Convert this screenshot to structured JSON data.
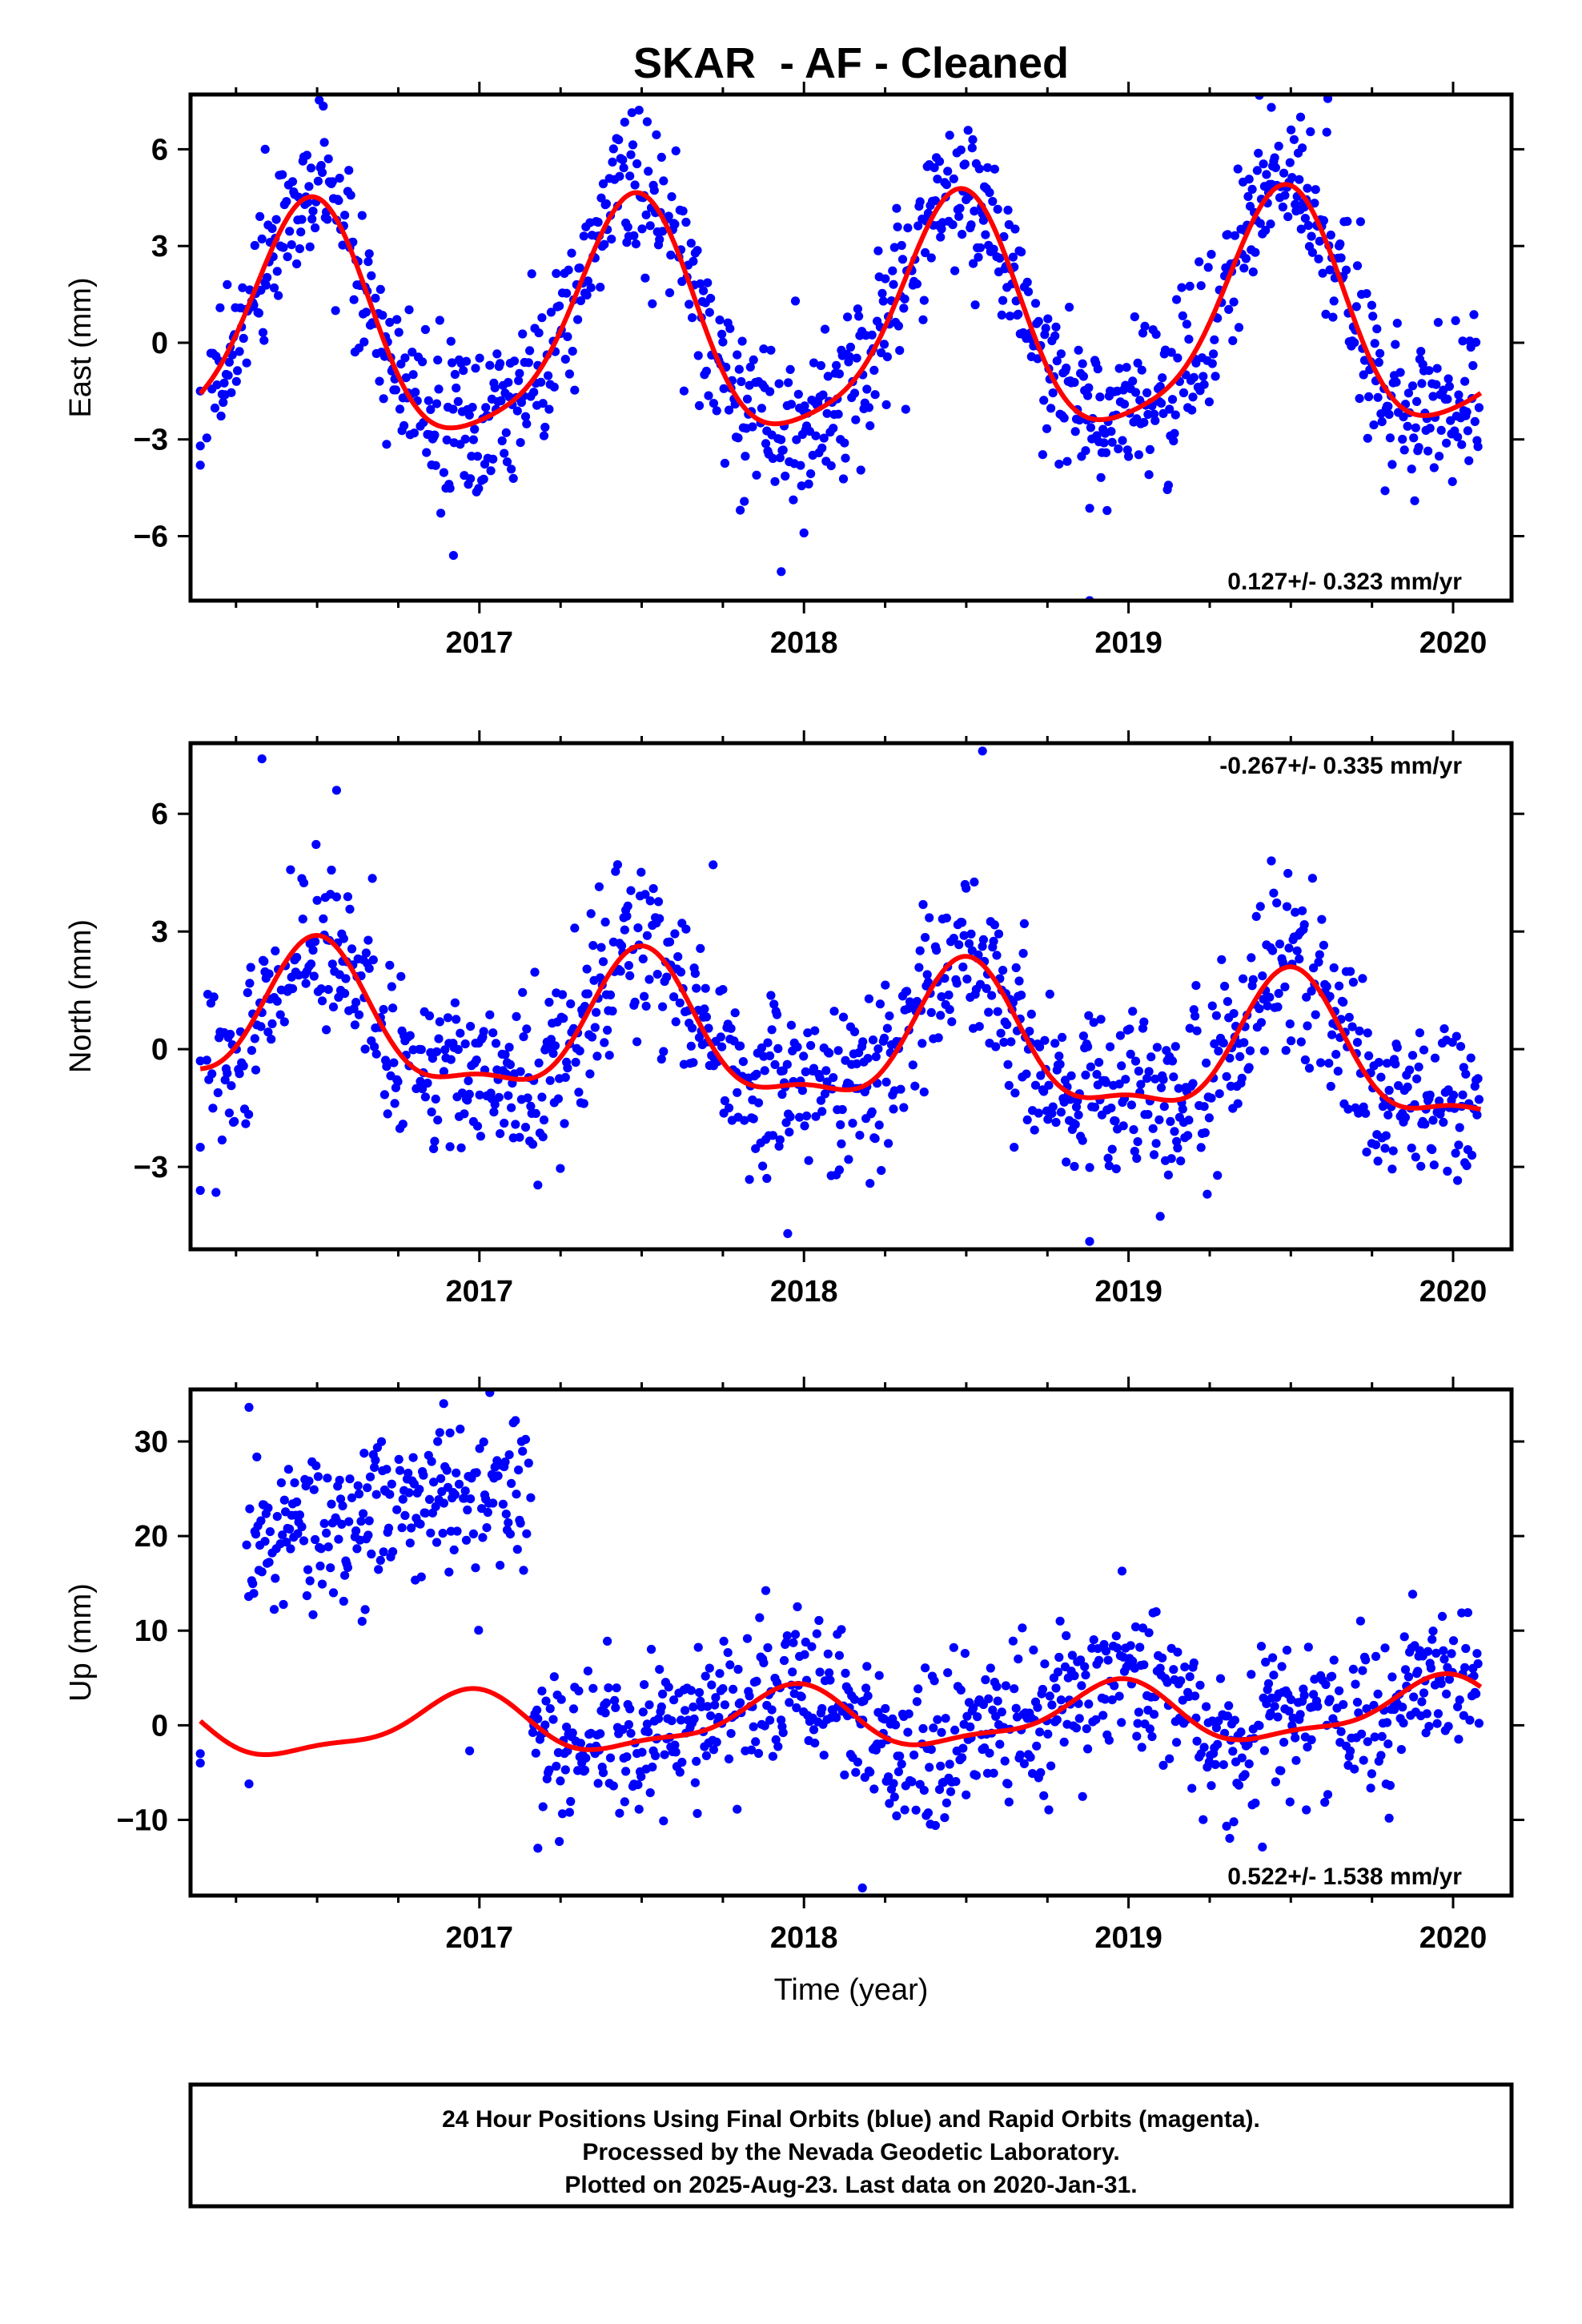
{
  "title": "SKAR  - AF - Cleaned",
  "xlabel": "Time (year)",
  "footer": {
    "lines": [
      "24 Hour Positions Using Final Orbits (blue) and Rapid Orbits (magenta).",
      "Processed by the Nevada Geodetic Laboratory.",
      "Plotted on 2025-Aug-23. Last data on 2020-Jan-31."
    ]
  },
  "colors": {
    "points": "#0000ff",
    "model": "#ff0000",
    "frame": "#000000"
  },
  "chart_data": [
    {
      "type": "scatter",
      "component": "east",
      "ylabel": "East (mm)",
      "ylim": [
        -8,
        7.7
      ],
      "yticks": [
        -6,
        -3,
        0,
        3,
        6
      ],
      "xlim": [
        2016.11,
        2020.18
      ],
      "xticks": [
        2017,
        2018,
        2019,
        2020
      ],
      "rate": "0.127+/- 0.323 mm/yr",
      "rate_position": "bottom-right",
      "model": {
        "offset": 0.5,
        "amplitude": 3.55,
        "peak_phase": 0.47,
        "semi_amplitude": 0.7,
        "semi_phase": 0.0,
        "trend": 0.127
      },
      "scatter_sd": 1.25,
      "outliers": [
        [
          2016.14,
          -1.5
        ],
        [
          2016.14,
          -3.2
        ],
        [
          2016.14,
          -3.8
        ],
        [
          2016.92,
          -6.6
        ],
        [
          2017.93,
          -7.1
        ],
        [
          2018.0,
          -5.9
        ],
        [
          2018.88,
          -8.0
        ],
        [
          2019.44,
          7.3
        ],
        [
          2019.53,
          7.0
        ],
        [
          2018.52,
          6.3
        ],
        [
          2016.34,
          6.0
        ]
      ]
    },
    {
      "type": "scatter",
      "component": "north",
      "ylabel": "North (mm)",
      "ylim": [
        -5.1,
        7.8
      ],
      "yticks": [
        -3,
        0,
        3,
        6
      ],
      "xlim": [
        2016.11,
        2020.18
      ],
      "xticks": [
        2017,
        2018,
        2019,
        2020
      ],
      "rate": "-0.267+/- 0.335 mm/yr",
      "rate_position": "top-right",
      "model": {
        "offset": 0.2,
        "amplitude": 1.7,
        "peak_phase": 0.5,
        "semi_amplitude": 0.6,
        "semi_phase": 0.0,
        "trend": -0.267
      },
      "scatter_sd": 1.05,
      "outliers": [
        [
          2016.14,
          -0.3
        ],
        [
          2016.14,
          -2.5
        ],
        [
          2016.14,
          -3.6
        ],
        [
          2016.28,
          -1.9
        ],
        [
          2016.33,
          7.4
        ],
        [
          2016.56,
          6.6
        ],
        [
          2018.55,
          7.6
        ],
        [
          2019.44,
          4.8
        ],
        [
          2017.72,
          4.7
        ],
        [
          2017.95,
          -4.7
        ],
        [
          2018.88,
          -4.9
        ]
      ]
    },
    {
      "type": "scatter",
      "component": "up",
      "ylabel": "Up (mm)",
      "ylim": [
        -18,
        35.5
      ],
      "yticks": [
        -10,
        0,
        10,
        20,
        30
      ],
      "xlim": [
        2016.11,
        2020.18
      ],
      "xticks": [
        2017,
        2018,
        2019,
        2020
      ],
      "rate": "0.522+/- 1.538 mm/yr",
      "rate_position": "bottom-right",
      "model": {
        "offset": 0.5,
        "amplitude": 3.0,
        "peak_phase": 0.95,
        "semi_amplitude": 1.0,
        "semi_phase": 0.0,
        "trend": 0.522
      },
      "scatter_sd": 4.2,
      "early_cluster": {
        "x_range": [
          2016.28,
          2017.16
        ],
        "center": 22.5,
        "sd": 4.3
      },
      "outliers": [
        [
          2016.14,
          -3.0
        ],
        [
          2016.14,
          -4.0
        ],
        [
          2016.29,
          -6.2
        ],
        [
          2016.97,
          -2.7
        ],
        [
          2016.29,
          33.6
        ],
        [
          2016.89,
          34.0
        ],
        [
          2018.98,
          16.3
        ],
        [
          2018.18,
          -17.2
        ],
        [
          2017.18,
          -13.0
        ]
      ]
    }
  ]
}
